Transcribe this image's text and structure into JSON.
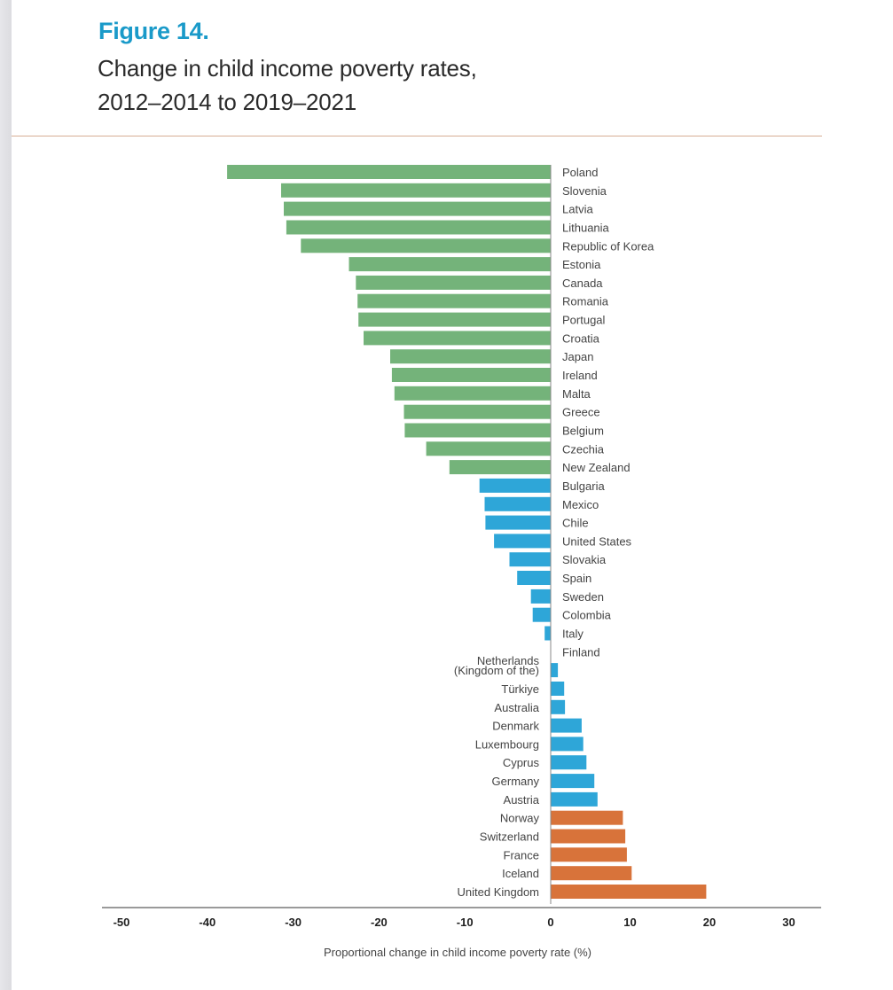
{
  "header": {
    "figure_label": "Figure 14.",
    "title_line1": "Change in child income poverty rates,",
    "title_line2": "2012–2014 to 2019–2021"
  },
  "colors": {
    "figure_label": "#1a9ac9",
    "green": "#74b37a",
    "blue": "#2ea6d8",
    "orange": "#d8733a",
    "rule": "#d7ad95",
    "axis": "#9a9a9a"
  },
  "chart_data": {
    "type": "bar",
    "orientation": "horizontal",
    "title": "Change in child income poverty rates, 2012–2014 to 2019–2021",
    "xlabel": "Proportional change in child income poverty rate (%)",
    "ylabel": "",
    "xlim": [
      -50,
      30
    ],
    "xticks": [
      -50,
      -40,
      -30,
      -20,
      -10,
      0,
      10,
      20,
      30
    ],
    "grid": false,
    "legend": null,
    "categories": [
      "Poland",
      "Slovenia",
      "Latvia",
      "Lithuania",
      "Republic of Korea",
      "Estonia",
      "Canada",
      "Romania",
      "Portugal",
      "Croatia",
      "Japan",
      "Ireland",
      "Malta",
      "Greece",
      "Belgium",
      "Czechia",
      "New Zealand",
      "Bulgaria",
      "Mexico",
      "Chile",
      "United States",
      "Slovakia",
      "Spain",
      "Sweden",
      "Colombia",
      "Italy",
      "Finland",
      "Netherlands (Kingdom of the)",
      "Türkiye",
      "Australia",
      "Denmark",
      "Luxembourg",
      "Cyprus",
      "Germany",
      "Austria",
      "Norway",
      "Switzerland",
      "France",
      "Iceland",
      "United Kingdom"
    ],
    "values": [
      -37.7,
      -31.4,
      -31.1,
      -30.8,
      -29.1,
      -23.5,
      -22.7,
      -22.5,
      -22.4,
      -21.8,
      -18.7,
      -18.5,
      -18.2,
      -17.1,
      -17.0,
      -14.5,
      -11.8,
      -8.3,
      -7.7,
      -7.6,
      -6.6,
      -4.8,
      -3.9,
      -2.3,
      -2.1,
      -0.7,
      0.0,
      0.9,
      1.7,
      1.8,
      3.9,
      4.1,
      4.5,
      5.5,
      5.9,
      9.1,
      9.4,
      9.6,
      10.2,
      19.6
    ],
    "color_groups": [
      "green",
      "green",
      "green",
      "green",
      "green",
      "green",
      "green",
      "green",
      "green",
      "green",
      "green",
      "green",
      "green",
      "green",
      "green",
      "green",
      "green",
      "blue",
      "blue",
      "blue",
      "blue",
      "blue",
      "blue",
      "blue",
      "blue",
      "blue",
      "blue",
      "blue",
      "blue",
      "blue",
      "blue",
      "blue",
      "blue",
      "blue",
      "blue",
      "orange",
      "orange",
      "orange",
      "orange",
      "orange"
    ],
    "label_lines": {
      "Netherlands (Kingdom of the)": [
        "Netherlands",
        "(Kingdom of the)"
      ]
    }
  }
}
